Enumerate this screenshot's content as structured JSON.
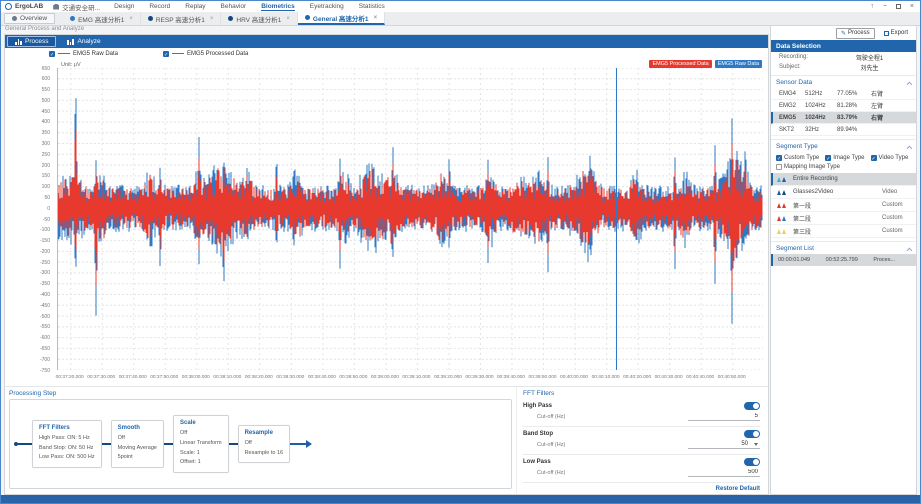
{
  "titlebar": {
    "app_name": "ErgoLAB",
    "project_name": "交通安全研...",
    "menus": [
      "Design",
      "Record",
      "Replay",
      "Behavior",
      "Biometrics",
      "Eyetracking",
      "Statistics"
    ],
    "active_menu": "Biometrics"
  },
  "tabbar": {
    "tabs": [
      {
        "label": "Overview",
        "closable": false,
        "active": false,
        "color": "#6b7a8d"
      },
      {
        "label": "EMG 高速分析1",
        "closable": true,
        "active": false,
        "color": "#2f78c4"
      },
      {
        "label": "RESP 高速分析1",
        "closable": true,
        "active": false,
        "color": "#16477e"
      },
      {
        "label": "HRV 高速分析1",
        "closable": true,
        "active": false,
        "color": "#16477e"
      },
      {
        "label": "General 高速分析1",
        "closable": true,
        "active": true,
        "color": "#2166ac"
      }
    ]
  },
  "breadcrumb": "General Process and Analyze",
  "view_tabs": {
    "process": "Process",
    "analyze": "Analyze",
    "active": "Process"
  },
  "legend": [
    {
      "label": "EMG5 Raw Data",
      "color": "#2f78c4",
      "checked": true
    },
    {
      "label": "EMG5 Processed Data",
      "color": "#e8392e",
      "checked": true
    }
  ],
  "chart_data": {
    "type": "line",
    "title": "EMG5 continuous signal, raw vs processed",
    "unit_label": "Unit: μV",
    "ylim": [
      -750,
      650
    ],
    "ytick_step": 50,
    "x_ticks": [
      "00:37:20.000",
      "00:37:30.000",
      "00:37:40.000",
      "00:37:50.000",
      "00:38:00.000",
      "00:38:10.000",
      "00:38:20.000",
      "00:38:30.000",
      "00:38:40.000",
      "00:38:50.000",
      "00:39:00.000",
      "00:39:10.000",
      "00:39:20.000",
      "00:39:30.000",
      "00:39:40.000",
      "00:39:50.000",
      "00:40:00.000",
      "00:40:10.000",
      "00:40:20.000",
      "00:40:30.000",
      "00:40:40.000",
      "00:40:50.000"
    ],
    "grid": true,
    "cursor_fraction": 0.792,
    "badges": [
      {
        "label": "EMG5 Processed Data",
        "color": "#e8392e"
      },
      {
        "label": "EMG5 Raw Data",
        "color": "#2f78c4"
      }
    ],
    "series": [
      {
        "name": "EMG5 Raw Data",
        "color": "#2f78c4",
        "base_amp_uV": 100,
        "spike_gain": 1.0,
        "seed": 7
      },
      {
        "name": "EMG5 Processed Data",
        "color": "#e8392e",
        "base_amp_uV": 85,
        "spike_gain": 0.72,
        "seed": 13
      }
    ],
    "spikes": [
      {
        "x": 0.025,
        "up": 620,
        "down": -330
      },
      {
        "x": 0.054,
        "up": 230,
        "down": -515
      },
      {
        "x": 0.145,
        "up": 210,
        "down": -300
      },
      {
        "x": 0.2,
        "up": 330,
        "down": -260
      },
      {
        "x": 0.235,
        "up": 250,
        "down": -400
      },
      {
        "x": 0.31,
        "up": 260,
        "down": -200
      },
      {
        "x": 0.4,
        "up": 230,
        "down": -280
      },
      {
        "x": 0.475,
        "up": 300,
        "down": -240
      },
      {
        "x": 0.555,
        "up": 260,
        "down": -210
      },
      {
        "x": 0.61,
        "up": 230,
        "down": -260
      },
      {
        "x": 0.695,
        "up": 240,
        "down": -300
      },
      {
        "x": 0.755,
        "up": 280,
        "down": -220
      },
      {
        "x": 0.875,
        "up": 250,
        "down": -300
      },
      {
        "x": 0.932,
        "up": 300,
        "down": -360
      },
      {
        "x": 0.956,
        "up": 420,
        "down": -540
      },
      {
        "x": 0.975,
        "up": 320,
        "down": -160
      }
    ]
  },
  "processing_step": {
    "title": "Processing Step",
    "steps": [
      {
        "title": "FFT Filters",
        "lines": [
          "High Pass: ON: 5 Hz",
          "Band Stop: ON: 50 Hz",
          "Low Pass: ON: 500 Hz"
        ]
      },
      {
        "title": "Smooth",
        "lines": [
          "Off",
          "Moving Average",
          "5point"
        ]
      },
      {
        "title": "Scale",
        "lines": [
          "Off",
          "Linear Transform",
          "Scale: 1",
          "Offset: 1"
        ]
      },
      {
        "title": "Resample",
        "lines": [
          "Off",
          "Resample to 16"
        ]
      }
    ]
  },
  "fft_panel": {
    "title": "FFT Filters",
    "groups": [
      {
        "name": "High Pass",
        "cutoff_label": "Cut-off (Hz)",
        "value": "5",
        "enabled": true,
        "dropdown": false
      },
      {
        "name": "Band Stop",
        "cutoff_label": "Cut-off (Hz)",
        "value": "50",
        "enabled": true,
        "dropdown": true
      },
      {
        "name": "Low Pass",
        "cutoff_label": "Cut-off (Hz)",
        "value": "500",
        "enabled": true,
        "dropdown": false
      }
    ],
    "restore_label": "Restore Default"
  },
  "actions": {
    "process": "Process",
    "export": "Export"
  },
  "data_selection": {
    "title": "Data Selection",
    "recording_label": "Recording:",
    "recording_value": "驾驶全程1",
    "subject_label": "Subject:",
    "subject_value": "刘先生"
  },
  "sensor_data": {
    "title": "Sensor Data",
    "rows": [
      {
        "name": "EMG4",
        "rate": "512Hz",
        "quality": "77.05%",
        "position": "右臂",
        "selected": false
      },
      {
        "name": "EMG2",
        "rate": "1024Hz",
        "quality": "81.28%",
        "position": "左臂",
        "selected": false
      },
      {
        "name": "EMG5",
        "rate": "1024Hz",
        "quality": "83.79%",
        "position": "右臂",
        "selected": true
      },
      {
        "name": "SKT2",
        "rate": "32Hz",
        "quality": "89.94%",
        "position": "",
        "selected": false
      }
    ]
  },
  "segment_type": {
    "title": "Segment Type",
    "filters": [
      {
        "label": "Custom Type",
        "checked": true
      },
      {
        "label": "Image Type",
        "checked": true
      },
      {
        "label": "Video Type",
        "checked": true
      },
      {
        "label": "Mapping Image Type",
        "checked": false
      }
    ],
    "rows": [
      {
        "name": "Entire Recording",
        "type": "",
        "colors": [
          "#2bb7e0",
          "#1f5fa9"
        ],
        "selected": true
      },
      {
        "name": "Glasses2Video",
        "type": "Video",
        "colors": [
          "#1f5fa9",
          "#16477e"
        ],
        "selected": false
      },
      {
        "name": "第一段",
        "type": "Custom",
        "colors": [
          "#e23b2e",
          "#e23b2e"
        ],
        "selected": false
      },
      {
        "name": "第二段",
        "type": "Custom",
        "colors": [
          "#e23b2e",
          "#2f78c4"
        ],
        "selected": false
      },
      {
        "name": "第三段",
        "type": "Custom",
        "colors": [
          "#e8d44d",
          "#e8d44d"
        ],
        "selected": false
      }
    ]
  },
  "segment_list": {
    "title": "Segment List",
    "rows": [
      {
        "start": "00:00:01.049",
        "end": "00:52:25.799",
        "type": "Proces...",
        "selected": true
      }
    ]
  }
}
